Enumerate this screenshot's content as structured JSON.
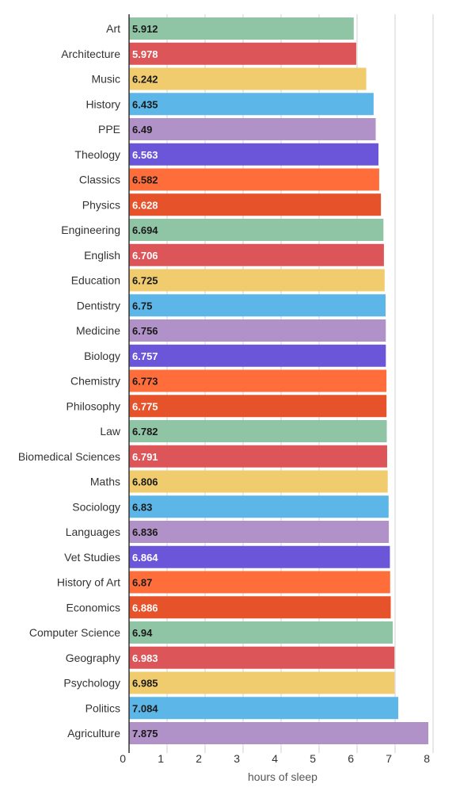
{
  "chart_data": {
    "type": "bar",
    "orientation": "horizontal",
    "title": "",
    "xlabel": "hours of sleep",
    "ylabel": "",
    "xlim": [
      0,
      8.2
    ],
    "x_ticks": [
      0,
      1,
      2,
      3,
      4,
      5,
      6,
      7,
      8
    ],
    "grid": true,
    "categories": [
      "Art",
      "Architecture",
      "Music",
      "History",
      "PPE",
      "Theology",
      "Classics",
      "Physics",
      "Engineering",
      "English",
      "Education",
      "Dentistry",
      "Medicine",
      "Biology",
      "Chemistry",
      "Philosophy",
      "Law",
      "Biomedical Sciences",
      "Maths",
      "Sociology",
      "Languages",
      "Vet Studies",
      "History of Art",
      "Economics",
      "Computer Science",
      "Geography",
      "Psychology",
      "Politics",
      "Agriculture"
    ],
    "values": [
      5.912,
      5.978,
      6.242,
      6.435,
      6.49,
      6.563,
      6.582,
      6.628,
      6.694,
      6.706,
      6.725,
      6.75,
      6.756,
      6.757,
      6.773,
      6.775,
      6.782,
      6.791,
      6.806,
      6.83,
      6.836,
      6.864,
      6.87,
      6.886,
      6.94,
      6.983,
      6.985,
      7.084,
      7.875
    ],
    "value_labels": [
      "5.912",
      "5.978",
      "6.242",
      "6.435",
      "6.49",
      "6.563",
      "6.582",
      "6.628",
      "6.694",
      "6.706",
      "6.725",
      "6.75",
      "6.756",
      "6.757",
      "6.773",
      "6.775",
      "6.782",
      "6.791",
      "6.806",
      "6.83",
      "6.836",
      "6.864",
      "6.87",
      "6.886",
      "6.94",
      "6.983",
      "6.985",
      "7.084",
      "7.875"
    ],
    "palette": [
      {
        "fill": "#8fc4a4",
        "text": "#1a1a1a"
      },
      {
        "fill": "#dc5558",
        "text": "#ffffff"
      },
      {
        "fill": "#f0cc6e",
        "text": "#1a1a1a"
      },
      {
        "fill": "#5cb7e8",
        "text": "#1a1a1a"
      },
      {
        "fill": "#b091c8",
        "text": "#1a1a1a"
      },
      {
        "fill": "#6b55d8",
        "text": "#ffffff"
      },
      {
        "fill": "#ff6e3a",
        "text": "#1a1a1a"
      },
      {
        "fill": "#e6532a",
        "text": "#ffffff"
      }
    ],
    "gridline_color": "#d0d0d0",
    "axis_color": "#333333"
  }
}
